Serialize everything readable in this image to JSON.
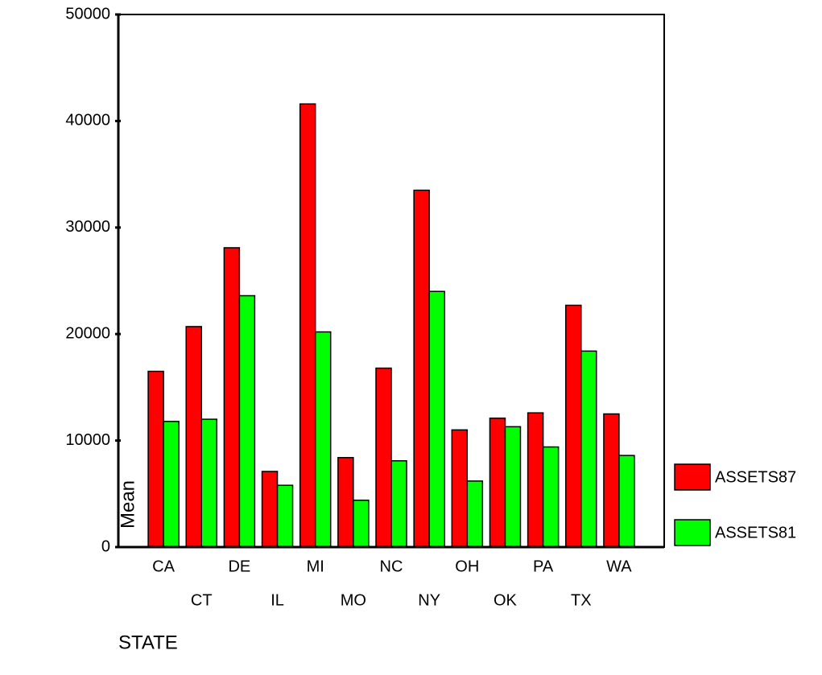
{
  "chart_data": {
    "type": "bar",
    "categories": [
      "CA",
      "CT",
      "DE",
      "IL",
      "MI",
      "MO",
      "NC",
      "NY",
      "OH",
      "OK",
      "PA",
      "TX",
      "WA"
    ],
    "series": [
      {
        "name": "ASSETS87",
        "color": "#ff0000",
        "values": [
          16500,
          20700,
          28100,
          7100,
          41600,
          8400,
          16800,
          33500,
          11000,
          12100,
          12600,
          22700,
          12500
        ]
      },
      {
        "name": "ASSETS81",
        "color": "#00ff00",
        "values": [
          11800,
          12000,
          23600,
          5800,
          20200,
          4400,
          8100,
          24000,
          6200,
          11300,
          9400,
          18400,
          8600
        ]
      }
    ],
    "xlabel": "STATE",
    "ylabel": "Mean",
    "ylim": [
      0,
      50000
    ],
    "yticks": [
      0,
      10000,
      20000,
      30000,
      40000,
      50000
    ],
    "legend": "right"
  }
}
